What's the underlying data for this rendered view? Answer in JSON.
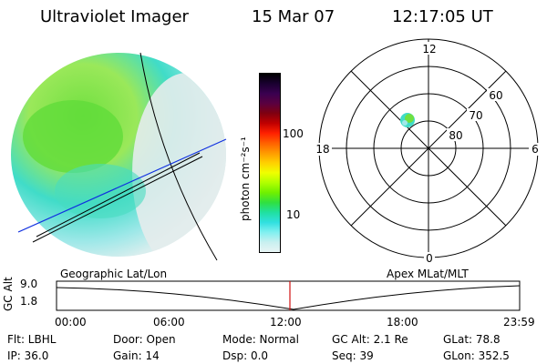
{
  "header": {
    "instrument": "Ultraviolet Imager",
    "date": "15 Mar 07",
    "time": "12:17:05 UT"
  },
  "colorbar": {
    "label": "photon cm⁻²s⁻¹",
    "ticks": [
      "100",
      "10"
    ],
    "colors": [
      "#000000",
      "#1a0030",
      "#3a0050",
      "#5a0040",
      "#800010",
      "#c00000",
      "#ff2000",
      "#ff6000",
      "#ff9a00",
      "#ffd000",
      "#f0ff00",
      "#b0ff00",
      "#70f000",
      "#30e040",
      "#20e0a0",
      "#30e0e0",
      "#80f0f0",
      "#c8f0f0",
      "#e8f4f4"
    ]
  },
  "polar_plot": {
    "mlt_labels": {
      "top": "12",
      "left": "18",
      "right": "6",
      "bottom": "0"
    },
    "lat_labels": [
      "60",
      "70",
      "80"
    ]
  },
  "timeline": {
    "left_label": "Geographic Lat/Lon",
    "right_label": "Apex MLat/MLT",
    "axis_label": "GC Alt",
    "y_ticks": [
      "9.0",
      "1.8"
    ],
    "x_ticks": [
      "00:00",
      "06:00",
      "12:00",
      "18:00",
      "23:59"
    ]
  },
  "info": {
    "flt": "Flt: LBHL",
    "door": "Door: Open",
    "mode": "Mode: Normal",
    "gc_alt": "GC Alt: 2.1 Re",
    "glat": "GLat:  78.8",
    "ip": "IP: 36.0",
    "gain": "Gain: 14",
    "dsp": "Dsp:    0.0",
    "seq": "Seq: 39",
    "glon": "GLon: 352.5"
  }
}
